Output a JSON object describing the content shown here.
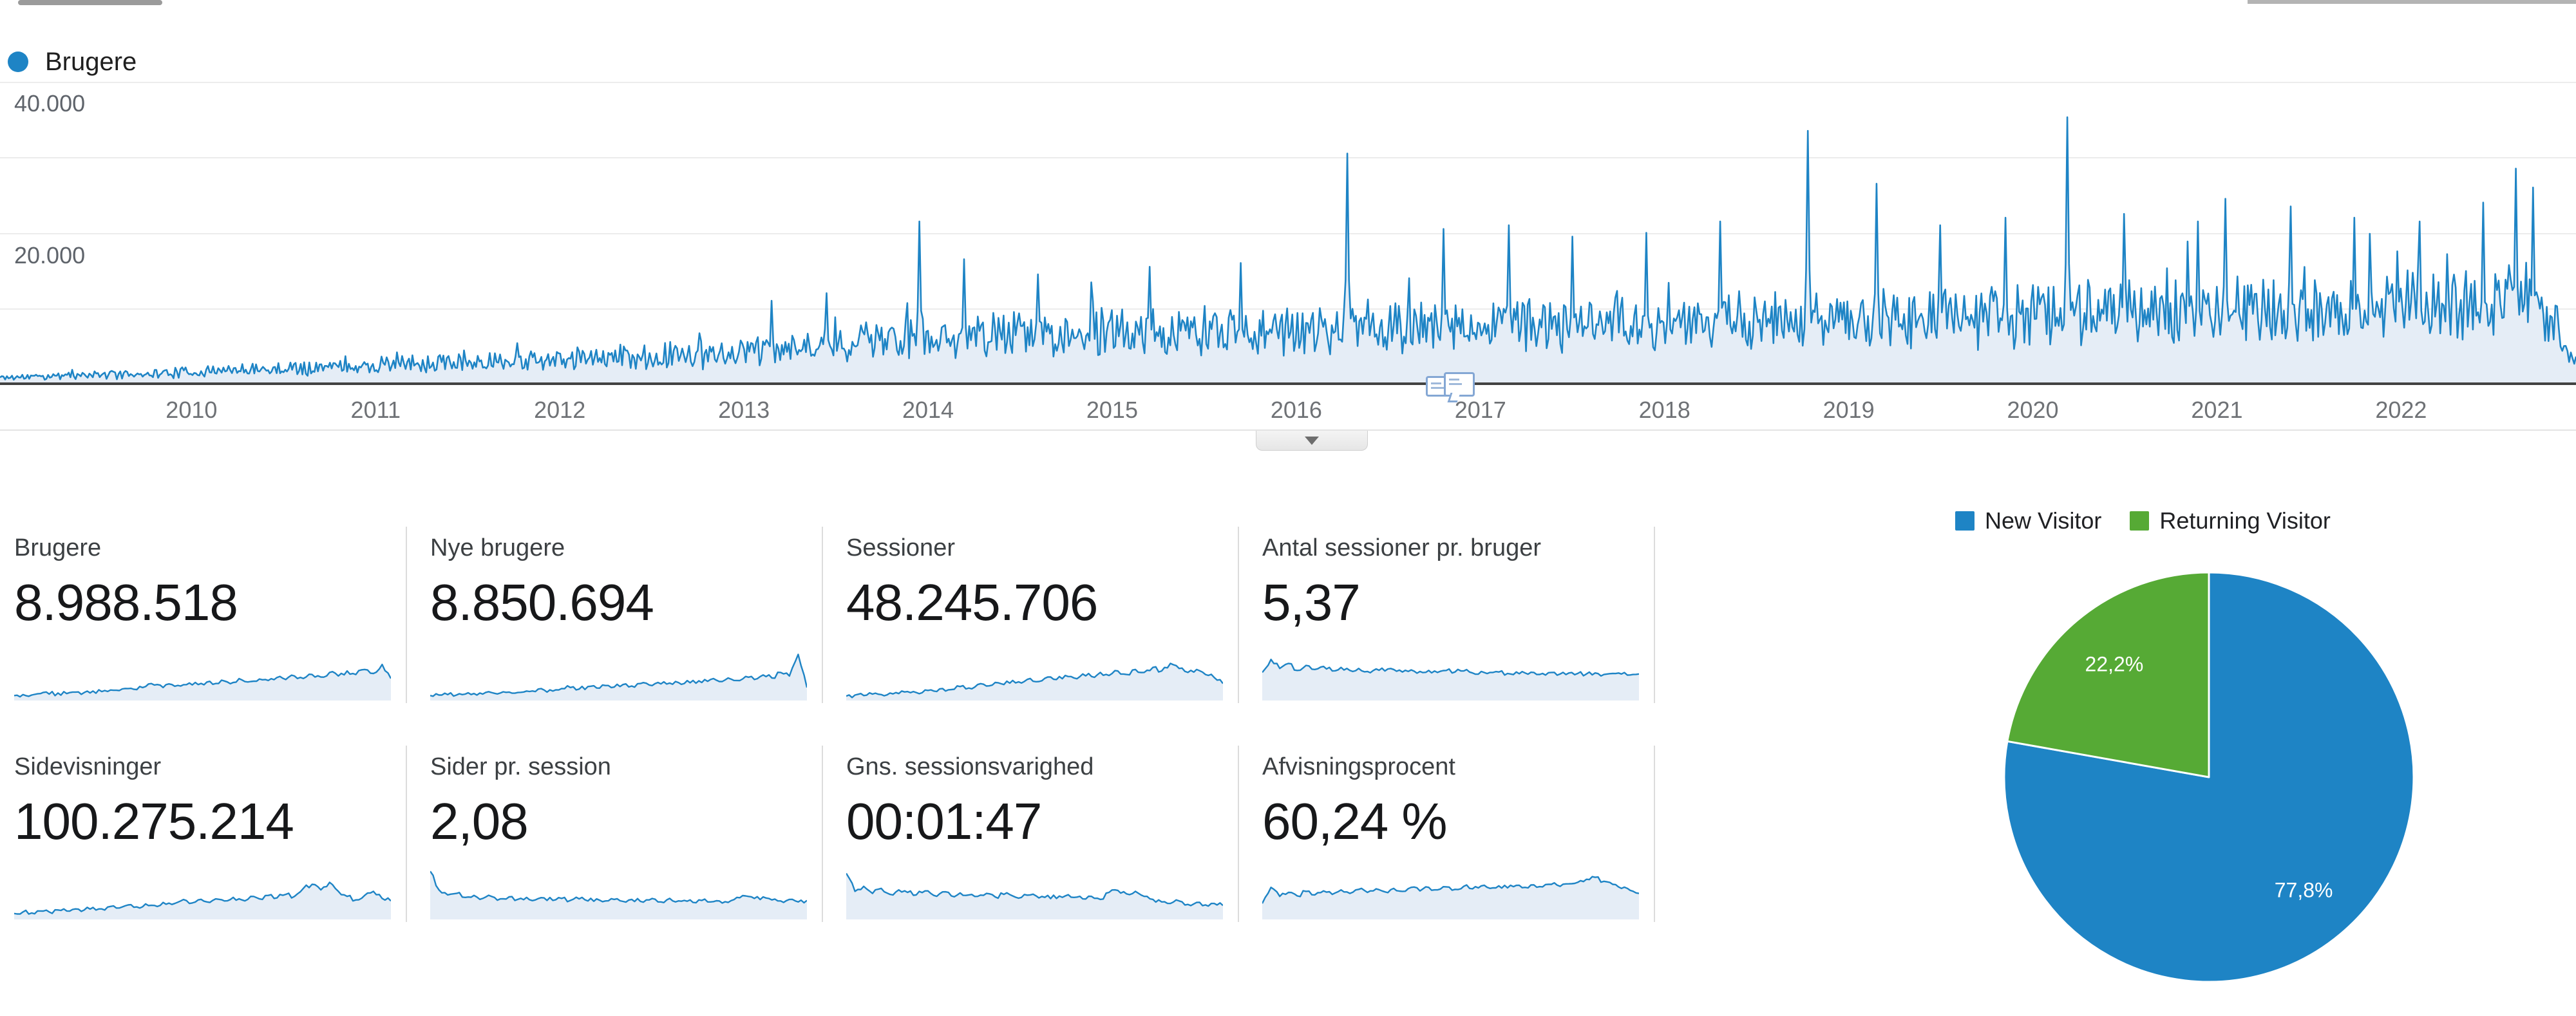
{
  "page": {
    "background": "#ffffff"
  },
  "colors": {
    "blue": "#1e84c5",
    "green": "#56aa35",
    "area_fill": "#e5edf6",
    "axis": "#424242"
  },
  "timeseries": {
    "legend_label": "Brugere",
    "y_axis_labels": [
      "40.000",
      "20.000"
    ],
    "x_axis_labels": [
      "2010",
      "2011",
      "2012",
      "2013",
      "2014",
      "2015",
      "2016",
      "2017",
      "2018",
      "2019",
      "2020",
      "2021",
      "2022"
    ]
  },
  "summary": {
    "rows": [
      {
        "metrics": [
          {
            "label": "Brugere",
            "value": "8.988.518"
          },
          {
            "label": "Nye brugere",
            "value": "8.850.694"
          },
          {
            "label": "Sessioner",
            "value": "48.245.706"
          },
          {
            "label": "Antal sessioner pr. bruger",
            "value": "5,37"
          }
        ]
      },
      {
        "metrics": [
          {
            "label": "Sidevisninger",
            "value": "100.275.214"
          },
          {
            "label": "Sider pr. session",
            "value": "2,08"
          },
          {
            "label": "Gns. sessionsvarighed",
            "value": "00:01:47"
          },
          {
            "label": "Afvisningsprocent",
            "value": "60,24 %"
          }
        ]
      }
    ]
  },
  "pie_legend": {
    "items": [
      {
        "label": "New Visitor",
        "color": "#1e84c5"
      },
      {
        "label": "Returning Visitor",
        "color": "#56aa35"
      }
    ]
  },
  "chart_data": [
    {
      "id": "users-over-time",
      "type": "area",
      "title": "Brugere",
      "x_range": [
        2008.96,
        2022.95
      ],
      "x_tick_labels": [
        "2010",
        "2011",
        "2012",
        "2013",
        "2014",
        "2015",
        "2016",
        "2017",
        "2018",
        "2019",
        "2020",
        "2021",
        "2022"
      ],
      "y_ticks": [
        {
          "value": 20000,
          "label": "20.000"
        },
        {
          "value": 40000,
          "label": "40.000"
        }
      ],
      "ylim": [
        0,
        42000
      ],
      "y_axis_max": 40000,
      "grid": true,
      "legend_position": "top-left",
      "series": [
        {
          "name": "Brugere",
          "color": "#1e84c5",
          "fill": "#e5edf6",
          "noise_seed": 11,
          "base_points": [
            [
              2009.0,
              800
            ],
            [
              2009.5,
              1100
            ],
            [
              2010.0,
              1500
            ],
            [
              2010.5,
              1900
            ],
            [
              2011.0,
              2300
            ],
            [
              2011.5,
              2700
            ],
            [
              2012.0,
              3100
            ],
            [
              2012.5,
              3500
            ],
            [
              2013.0,
              3900
            ],
            [
              2013.3,
              4600
            ],
            [
              2013.6,
              5400
            ],
            [
              2014.0,
              6000
            ],
            [
              2014.5,
              6200
            ],
            [
              2015.0,
              6400
            ],
            [
              2015.5,
              6600
            ],
            [
              2016.0,
              6900
            ],
            [
              2016.5,
              7100
            ],
            [
              2017.0,
              7300
            ],
            [
              2017.5,
              7500
            ],
            [
              2018.0,
              7700
            ],
            [
              2018.5,
              7900
            ],
            [
              2019.0,
              8200
            ],
            [
              2019.5,
              8400
            ],
            [
              2020.0,
              8700
            ],
            [
              2020.3,
              9200
            ],
            [
              2020.8,
              8900
            ],
            [
              2021.0,
              9100
            ],
            [
              2021.5,
              9200
            ],
            [
              2022.0,
              9400
            ],
            [
              2022.4,
              9900
            ],
            [
              2022.7,
              10300
            ],
            [
              2022.82,
              8200
            ],
            [
              2022.9,
              4200
            ],
            [
              2022.95,
              3000
            ]
          ],
          "spikes": [
            [
              2013.15,
              11000
            ],
            [
              2013.45,
              12000
            ],
            [
              2013.95,
              21500
            ],
            [
              2014.2,
              16500
            ],
            [
              2014.6,
              14500
            ],
            [
              2015.2,
              15500
            ],
            [
              2015.7,
              16000
            ],
            [
              2016.28,
              30500
            ],
            [
              2016.8,
              20500
            ],
            [
              2017.15,
              21000
            ],
            [
              2017.5,
              19500
            ],
            [
              2017.9,
              20000
            ],
            [
              2018.3,
              21500
            ],
            [
              2018.78,
              33500
            ],
            [
              2019.15,
              26500
            ],
            [
              2019.5,
              21000
            ],
            [
              2019.85,
              22000
            ],
            [
              2020.19,
              35300
            ],
            [
              2020.5,
              22500
            ],
            [
              2020.9,
              21500
            ],
            [
              2021.05,
              24500
            ],
            [
              2021.4,
              23500
            ],
            [
              2021.75,
              22000
            ],
            [
              2022.1,
              21500
            ],
            [
              2022.45,
              24000
            ],
            [
              2022.62,
              28500
            ],
            [
              2022.72,
              26000
            ]
          ]
        }
      ]
    },
    {
      "id": "spark-brugere",
      "type": "area",
      "metric": "Brugere",
      "values": [
        0.06,
        0.08,
        0.07,
        0.1,
        0.09,
        0.11,
        0.1,
        0.13,
        0.12,
        0.15,
        0.14,
        0.17,
        0.16,
        0.2,
        0.18,
        0.24,
        0.27,
        0.22,
        0.28,
        0.25,
        0.31,
        0.28,
        0.33,
        0.3,
        0.35,
        0.32,
        0.37,
        0.34,
        0.39,
        0.36,
        0.42,
        0.38,
        0.45,
        0.4,
        0.48,
        0.43,
        0.52,
        0.45,
        0.55,
        0.48,
        0.58,
        0.5,
        0.68,
        0.4
      ]
    },
    {
      "id": "spark-nye-brugere",
      "type": "area",
      "metric": "Nye brugere",
      "values": [
        0.06,
        0.07,
        0.08,
        0.07,
        0.09,
        0.1,
        0.09,
        0.12,
        0.11,
        0.13,
        0.12,
        0.15,
        0.14,
        0.17,
        0.15,
        0.2,
        0.22,
        0.19,
        0.24,
        0.21,
        0.26,
        0.23,
        0.28,
        0.25,
        0.3,
        0.27,
        0.32,
        0.29,
        0.34,
        0.3,
        0.36,
        0.32,
        0.38,
        0.34,
        0.41,
        0.36,
        0.44,
        0.38,
        0.47,
        0.41,
        0.52,
        0.45,
        0.88,
        0.22
      ]
    },
    {
      "id": "spark-sessioner",
      "type": "area",
      "metric": "Sessioner",
      "values": [
        0.05,
        0.07,
        0.06,
        0.09,
        0.08,
        0.11,
        0.1,
        0.14,
        0.12,
        0.17,
        0.15,
        0.2,
        0.18,
        0.24,
        0.21,
        0.28,
        0.25,
        0.32,
        0.28,
        0.36,
        0.31,
        0.4,
        0.34,
        0.43,
        0.38,
        0.46,
        0.41,
        0.49,
        0.44,
        0.52,
        0.46,
        0.55,
        0.48,
        0.58,
        0.52,
        0.62,
        0.55,
        0.7,
        0.6,
        0.52,
        0.58,
        0.48,
        0.42,
        0.3
      ]
    },
    {
      "id": "spark-sessioner-pr-bruger",
      "type": "area",
      "metric": "Antal sessioner pr. bruger",
      "values": [
        0.52,
        0.78,
        0.6,
        0.7,
        0.56,
        0.66,
        0.58,
        0.64,
        0.55,
        0.62,
        0.56,
        0.6,
        0.54,
        0.59,
        0.55,
        0.58,
        0.53,
        0.57,
        0.54,
        0.56,
        0.52,
        0.56,
        0.53,
        0.55,
        0.51,
        0.54,
        0.52,
        0.53,
        0.5,
        0.53,
        0.51,
        0.52,
        0.5,
        0.52,
        0.49,
        0.51,
        0.5,
        0.49,
        0.51,
        0.48,
        0.5,
        0.49,
        0.47,
        0.49
      ]
    },
    {
      "id": "spark-sidevisninger",
      "type": "area",
      "metric": "Sidevisninger",
      "values": [
        0.08,
        0.11,
        0.09,
        0.13,
        0.11,
        0.15,
        0.13,
        0.17,
        0.15,
        0.2,
        0.17,
        0.22,
        0.19,
        0.25,
        0.21,
        0.27,
        0.24,
        0.3,
        0.26,
        0.33,
        0.28,
        0.35,
        0.31,
        0.37,
        0.33,
        0.4,
        0.35,
        0.42,
        0.37,
        0.44,
        0.39,
        0.46,
        0.42,
        0.58,
        0.66,
        0.55,
        0.7,
        0.52,
        0.42,
        0.35,
        0.44,
        0.52,
        0.38,
        0.33
      ]
    },
    {
      "id": "spark-sider-pr-session",
      "type": "area",
      "metric": "Sider pr. session",
      "values": [
        0.92,
        0.55,
        0.45,
        0.48,
        0.4,
        0.44,
        0.38,
        0.42,
        0.37,
        0.41,
        0.36,
        0.4,
        0.35,
        0.39,
        0.34,
        0.38,
        0.34,
        0.37,
        0.33,
        0.37,
        0.33,
        0.36,
        0.32,
        0.36,
        0.32,
        0.35,
        0.31,
        0.35,
        0.31,
        0.34,
        0.3,
        0.34,
        0.31,
        0.33,
        0.3,
        0.4,
        0.43,
        0.38,
        0.41,
        0.35,
        0.33,
        0.36,
        0.31,
        0.34
      ]
    },
    {
      "id": "spark-sessionsvarighed",
      "type": "area",
      "metric": "Gns. sessionsvarighed",
      "values": [
        0.88,
        0.52,
        0.62,
        0.48,
        0.58,
        0.46,
        0.55,
        0.5,
        0.45,
        0.53,
        0.44,
        0.51,
        0.43,
        0.49,
        0.45,
        0.42,
        0.48,
        0.41,
        0.46,
        0.43,
        0.4,
        0.45,
        0.39,
        0.44,
        0.38,
        0.43,
        0.4,
        0.37,
        0.42,
        0.36,
        0.5,
        0.54,
        0.47,
        0.52,
        0.42,
        0.36,
        0.31,
        0.28,
        0.33,
        0.26,
        0.3,
        0.25,
        0.28,
        0.24
      ]
    },
    {
      "id": "spark-afvisningsprocent",
      "type": "area",
      "metric": "Afvisningsprocent",
      "values": [
        0.28,
        0.6,
        0.42,
        0.5,
        0.43,
        0.52,
        0.45,
        0.53,
        0.46,
        0.55,
        0.48,
        0.56,
        0.5,
        0.57,
        0.51,
        0.58,
        0.52,
        0.6,
        0.53,
        0.6,
        0.55,
        0.61,
        0.56,
        0.62,
        0.57,
        0.63,
        0.58,
        0.63,
        0.59,
        0.64,
        0.6,
        0.65,
        0.61,
        0.66,
        0.62,
        0.67,
        0.7,
        0.76,
        0.8,
        0.72,
        0.66,
        0.58,
        0.54,
        0.48
      ]
    },
    {
      "id": "visitor-type",
      "type": "pie",
      "labels": [
        "New Visitor",
        "Returning Visitor"
      ],
      "values": [
        77.8,
        22.2
      ],
      "value_labels": [
        "77,8%",
        "22,2%"
      ],
      "colors": [
        "#1e84c5",
        "#56aa35"
      ],
      "start_angle_deg": 0,
      "direction": "clockwise",
      "legend_position": "top"
    }
  ]
}
